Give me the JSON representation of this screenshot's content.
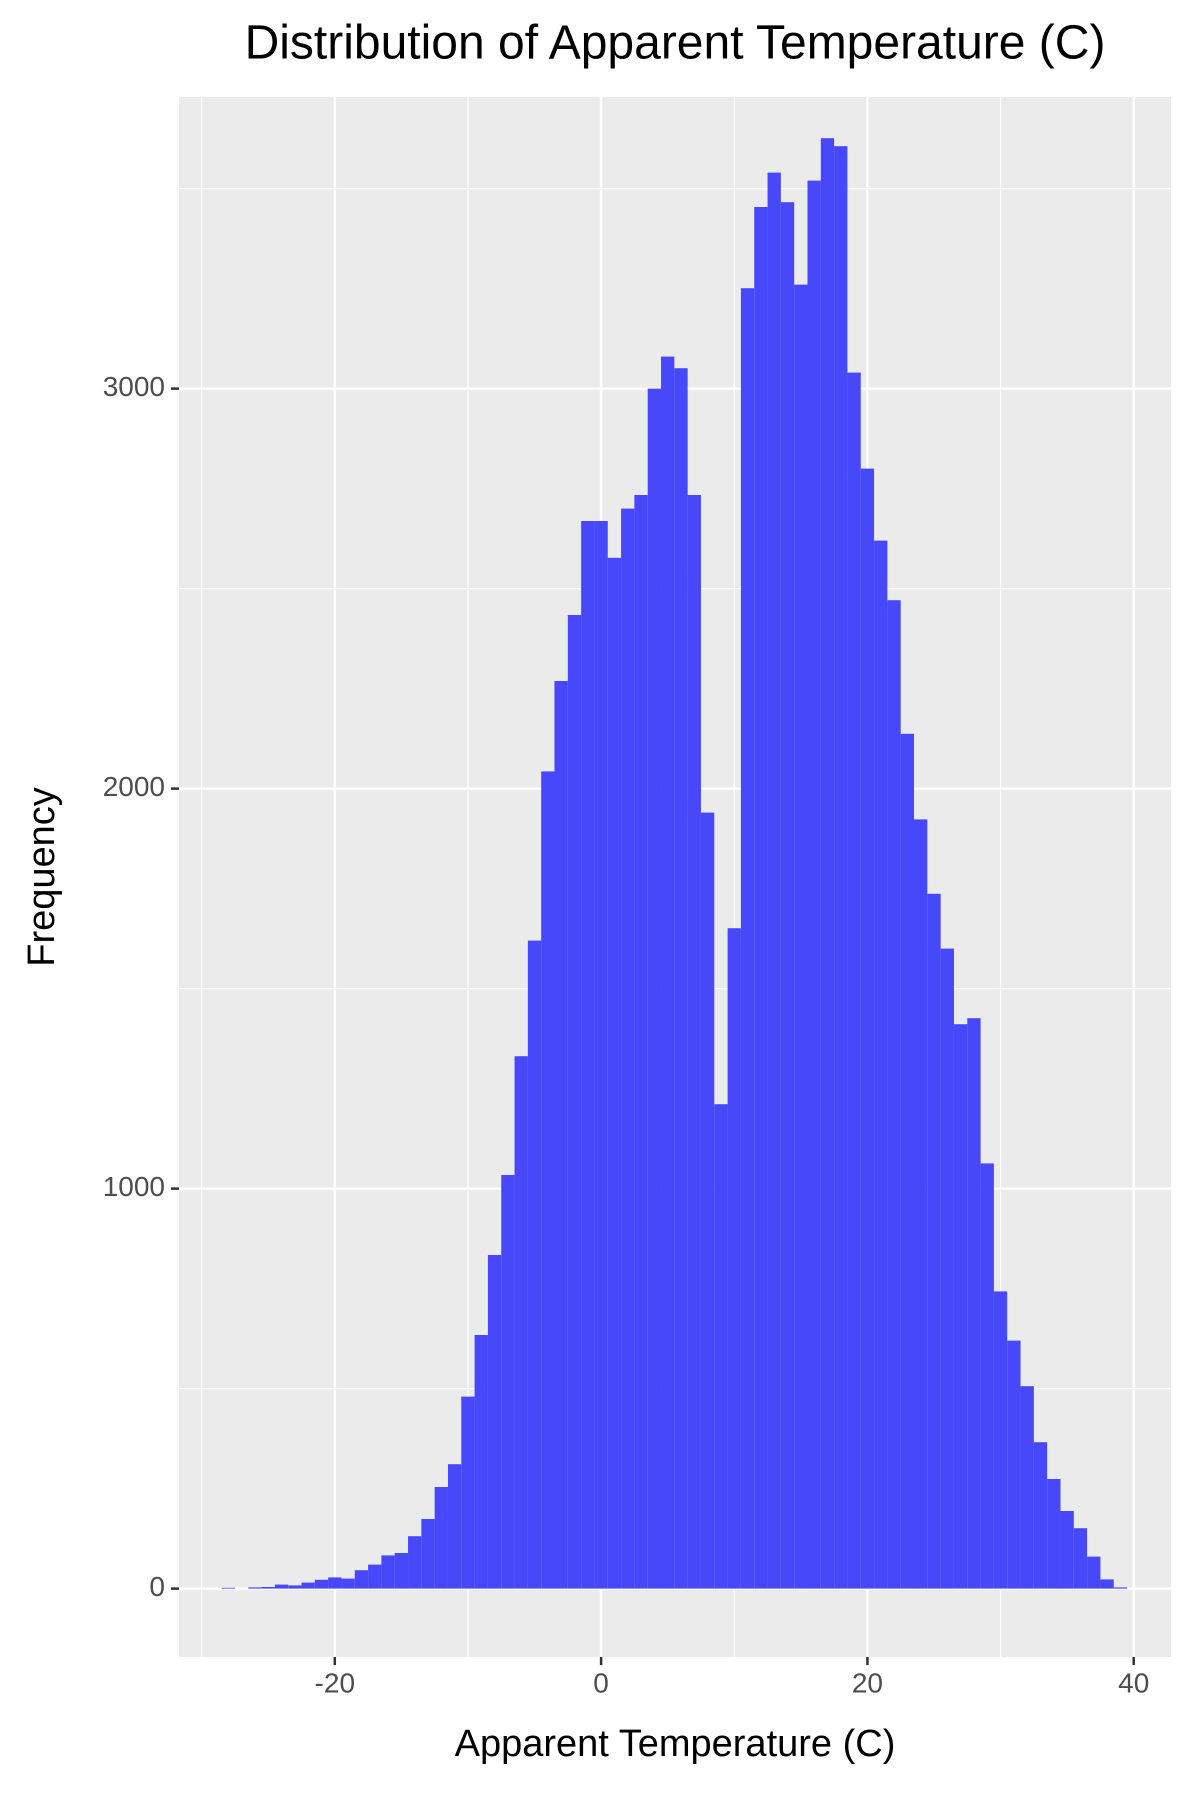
{
  "chart_data": {
    "type": "histogram",
    "title": "Distribution of Apparent Temperature (C)",
    "x_label": "Apparent Temperature (C)",
    "y_label": "Frequency",
    "bins": [
      -28.5,
      -27.5,
      -26.5,
      -25.5,
      -24.5,
      -23.5,
      -22.5,
      -21.5,
      -20.5,
      -19.5,
      -18.5,
      -17.5,
      -16.5,
      -15.5,
      -14.5,
      -13.5,
      -12.5,
      -11.5,
      -10.5,
      -9.5,
      -8.5,
      -7.5,
      -6.5,
      -5.5,
      -4.5,
      -3.5,
      -2.5,
      -1.5,
      -0.5,
      0.5,
      1.5,
      2.5,
      3.5,
      4.5,
      5.5,
      6.5,
      7.5,
      8.5,
      9.5,
      10.5,
      11.5,
      12.5,
      13.5,
      14.5,
      15.5,
      16.5,
      17.5,
      18.5,
      19.5,
      20.5,
      21.5,
      22.5,
      23.5,
      24.5,
      25.5,
      26.5,
      27.5,
      28.5,
      29.5,
      30.5,
      31.5,
      32.5,
      33.5,
      34.5,
      35.5,
      36.5,
      37.5,
      38.5,
      39.5
    ],
    "values": [
      2,
      0,
      3,
      4,
      10,
      8,
      15,
      22,
      28,
      25,
      46,
      60,
      83,
      89,
      131,
      174,
      254,
      311,
      480,
      634,
      834,
      1034,
      1331,
      1620,
      2043,
      2269,
      2434,
      2669,
      2669,
      2577,
      2700,
      2734,
      3000,
      3080,
      3051,
      2734,
      1940,
      1211,
      1651,
      3251,
      3454,
      3540,
      3466,
      3260,
      3520,
      3626,
      3606,
      3040,
      2800,
      2620,
      2471,
      2137,
      1923,
      1737,
      1600,
      1411,
      1426,
      1063,
      743,
      620,
      506,
      366,
      274,
      194,
      151,
      80,
      23,
      3
    ],
    "color": "#4848fb",
    "xlim": [
      -31.7,
      42.8
    ],
    "ylim": [
      -171,
      3729
    ],
    "xticks": [
      -20,
      0,
      20,
      40
    ],
    "yticks": [
      0,
      1000,
      2000,
      3000
    ],
    "x_minor_grid": [
      -30,
      -10,
      10,
      30
    ],
    "y_minor_grid": [
      500,
      1500,
      2500,
      3500
    ],
    "grid": true
  }
}
